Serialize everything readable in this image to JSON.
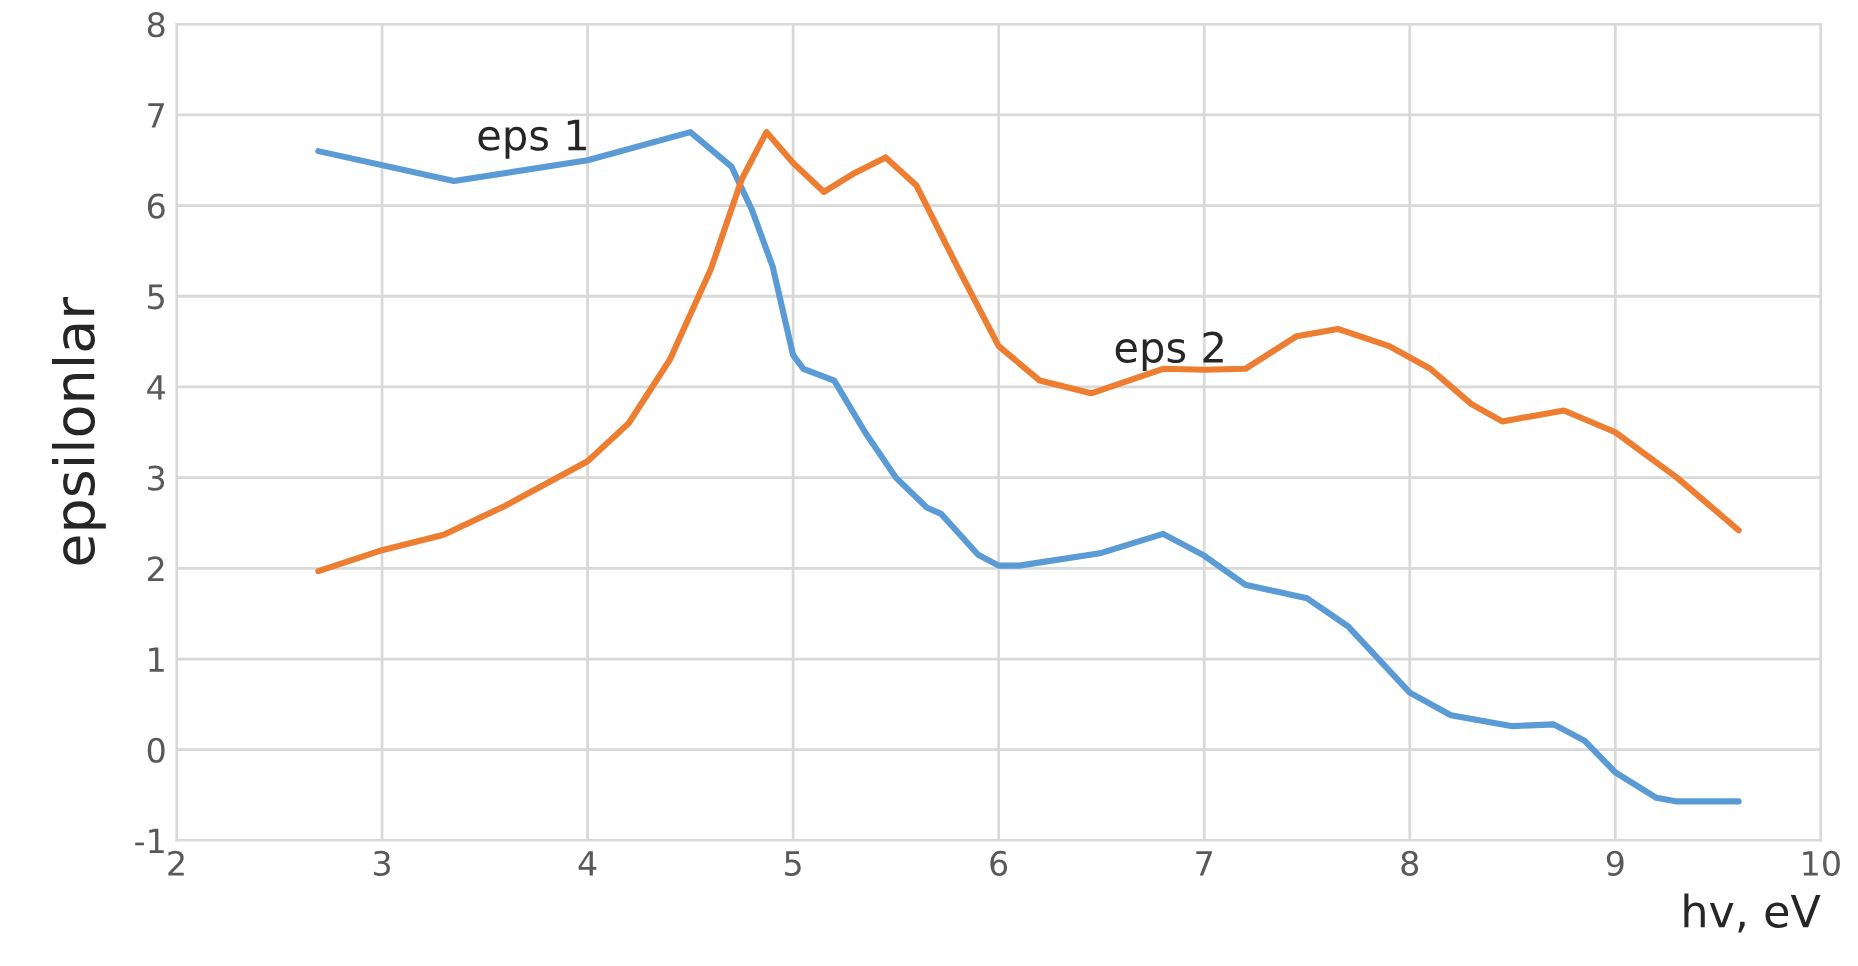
{
  "chart_data": {
    "type": "line",
    "xlabel": "hv, eV",
    "ylabel": "epsilonlar",
    "xlim": [
      2,
      10
    ],
    "xticks": [
      2,
      3,
      4,
      5,
      6,
      7,
      8,
      9,
      10
    ],
    "ylim": [
      -1,
      8
    ],
    "yticks": [
      -1,
      0,
      1,
      2,
      3,
      4,
      5,
      6,
      7,
      8
    ],
    "grid": true,
    "marker": "none",
    "line_style": "solid",
    "series": [
      {
        "name": "eps 1",
        "color": "#5b9bd5",
        "x": [
          2.69,
          3.35,
          4.0,
          4.5,
          4.7,
          4.8,
          4.9,
          5.0,
          5.05,
          5.2,
          5.35,
          5.5,
          5.65,
          5.72,
          5.9,
          6.0,
          6.1,
          6.5,
          6.8,
          7.0,
          7.2,
          7.5,
          7.7,
          8.0,
          8.2,
          8.5,
          8.7,
          8.85,
          9.0,
          9.2,
          9.3,
          9.6
        ],
        "values": [
          6.6,
          6.27,
          6.5,
          6.81,
          6.43,
          5.95,
          5.33,
          4.35,
          4.2,
          4.07,
          3.5,
          3.0,
          2.67,
          2.6,
          2.15,
          2.03,
          2.03,
          2.17,
          2.38,
          2.14,
          1.82,
          1.67,
          1.36,
          0.63,
          0.38,
          0.26,
          0.28,
          0.1,
          -0.25,
          -0.53,
          -0.57,
          -0.57
        ]
      },
      {
        "name": "eps 2",
        "color": "#ed7d31",
        "x": [
          2.69,
          3.0,
          3.3,
          3.6,
          4.0,
          4.2,
          4.4,
          4.6,
          4.75,
          4.87,
          5.0,
          5.15,
          5.3,
          5.45,
          5.6,
          5.8,
          6.0,
          6.2,
          6.45,
          6.8,
          7.0,
          7.2,
          7.45,
          7.65,
          7.9,
          8.1,
          8.3,
          8.45,
          8.75,
          9.0,
          9.3,
          9.6
        ],
        "values": [
          1.97,
          2.2,
          2.37,
          2.69,
          3.18,
          3.6,
          4.3,
          5.3,
          6.29,
          6.81,
          6.47,
          6.15,
          6.36,
          6.53,
          6.22,
          5.32,
          4.45,
          4.07,
          3.93,
          4.2,
          4.19,
          4.2,
          4.56,
          4.64,
          4.45,
          4.2,
          3.81,
          3.62,
          3.74,
          3.5,
          3.0,
          2.42
        ]
      }
    ]
  }
}
